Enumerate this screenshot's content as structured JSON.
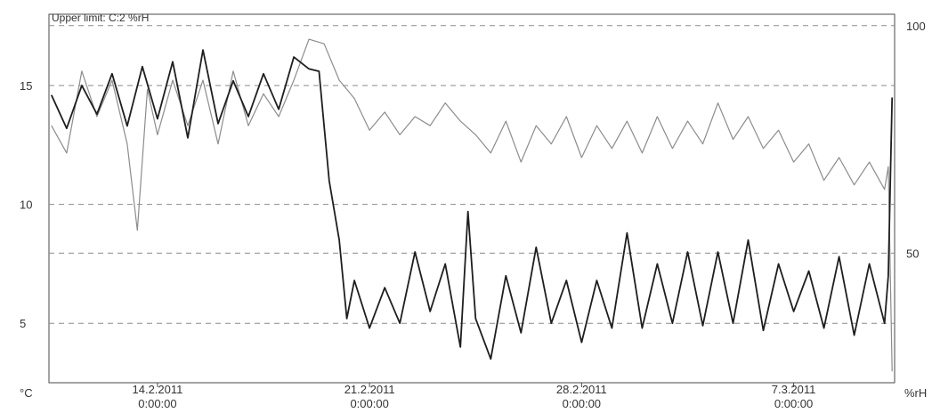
{
  "chart_data": {
    "type": "line",
    "title": "",
    "annotation": "Upper limit: C:2 %rH",
    "x_ticks": [
      {
        "date": "14.2.2011",
        "time": "0:00:00"
      },
      {
        "date": "21.2.2011",
        "time": "0:00:00"
      },
      {
        "date": "28.2.2011",
        "time": "0:00:00"
      },
      {
        "date": "7.3.2011",
        "time": "0:00:00"
      }
    ],
    "x_range": [
      "2011-02-10 10:00",
      "2011-03-10 08:00"
    ],
    "y_left": {
      "unit": "°C",
      "range": [
        2.5,
        18
      ],
      "ticks": [
        "15",
        "10",
        "5"
      ],
      "tick_values": [
        15,
        10,
        5
      ]
    },
    "y_right": {
      "unit": "%rH",
      "range": [
        21.5,
        102.5
      ],
      "ticks": [
        "100",
        "50"
      ],
      "tick_values": [
        100,
        50
      ]
    },
    "grid": "dashed horizontal",
    "series": [
      {
        "axis": "left",
        "style": "dark",
        "points": [
          [
            "2011-02-10 12:00",
            14.6
          ],
          [
            "2011-02-11 00:00",
            13.2
          ],
          [
            "2011-02-11 12:00",
            15.0
          ],
          [
            "2011-02-12 00:00",
            13.8
          ],
          [
            "2011-02-12 12:00",
            15.5
          ],
          [
            "2011-02-13 00:00",
            13.3
          ],
          [
            "2011-02-13 12:00",
            15.8
          ],
          [
            "2011-02-14 00:00",
            13.6
          ],
          [
            "2011-02-14 12:00",
            16.0
          ],
          [
            "2011-02-15 00:00",
            12.8
          ],
          [
            "2011-02-15 12:00",
            16.5
          ],
          [
            "2011-02-16 00:00",
            13.4
          ],
          [
            "2011-02-16 12:00",
            15.2
          ],
          [
            "2011-02-17 00:00",
            13.7
          ],
          [
            "2011-02-17 12:00",
            15.5
          ],
          [
            "2011-02-18 00:00",
            14.0
          ],
          [
            "2011-02-18 12:00",
            16.2
          ],
          [
            "2011-02-19 00:00",
            15.7
          ],
          [
            "2011-02-19 08:00",
            15.6
          ],
          [
            "2011-02-19 16:00",
            11.0
          ],
          [
            "2011-02-20 00:00",
            8.5
          ],
          [
            "2011-02-20 06:00",
            5.2
          ],
          [
            "2011-02-20 12:00",
            6.8
          ],
          [
            "2011-02-21 00:00",
            4.8
          ],
          [
            "2011-02-21 12:00",
            6.5
          ],
          [
            "2011-02-22 00:00",
            5.0
          ],
          [
            "2011-02-22 12:00",
            8.0
          ],
          [
            "2011-02-23 00:00",
            5.5
          ],
          [
            "2011-02-23 12:00",
            7.5
          ],
          [
            "2011-02-24 00:00",
            4.0
          ],
          [
            "2011-02-24 06:00",
            9.7
          ],
          [
            "2011-02-24 12:00",
            5.2
          ],
          [
            "2011-02-25 00:00",
            3.5
          ],
          [
            "2011-02-25 12:00",
            7.0
          ],
          [
            "2011-02-26 00:00",
            4.6
          ],
          [
            "2011-02-26 12:00",
            8.2
          ],
          [
            "2011-02-27 00:00",
            5.0
          ],
          [
            "2011-02-27 12:00",
            6.8
          ],
          [
            "2011-02-28 00:00",
            4.2
          ],
          [
            "2011-02-28 12:00",
            6.8
          ],
          [
            "2011-03-01 00:00",
            4.8
          ],
          [
            "2011-03-01 12:00",
            8.8
          ],
          [
            "2011-03-02 00:00",
            4.8
          ],
          [
            "2011-03-02 12:00",
            7.5
          ],
          [
            "2011-03-03 00:00",
            5.0
          ],
          [
            "2011-03-03 12:00",
            8.0
          ],
          [
            "2011-03-04 00:00",
            4.9
          ],
          [
            "2011-03-04 12:00",
            8.0
          ],
          [
            "2011-03-05 00:00",
            5.0
          ],
          [
            "2011-03-05 12:00",
            8.5
          ],
          [
            "2011-03-06 00:00",
            4.7
          ],
          [
            "2011-03-06 12:00",
            7.5
          ],
          [
            "2011-03-07 00:00",
            5.5
          ],
          [
            "2011-03-07 12:00",
            7.2
          ],
          [
            "2011-03-08 00:00",
            4.8
          ],
          [
            "2011-03-08 12:00",
            7.8
          ],
          [
            "2011-03-09 00:00",
            4.5
          ],
          [
            "2011-03-09 12:00",
            7.5
          ],
          [
            "2011-03-10 00:00",
            5.0
          ],
          [
            "2011-03-10 03:00",
            7.0
          ],
          [
            "2011-03-10 06:00",
            14.5
          ]
        ]
      },
      {
        "axis": "right",
        "style": "light",
        "points": [
          [
            "2011-02-10 12:00",
            78
          ],
          [
            "2011-02-11 00:00",
            72
          ],
          [
            "2011-02-11 12:00",
            90
          ],
          [
            "2011-02-12 00:00",
            80
          ],
          [
            "2011-02-12 12:00",
            88
          ],
          [
            "2011-02-13 00:00",
            74
          ],
          [
            "2011-02-13 08:00",
            55
          ],
          [
            "2011-02-13 16:00",
            86
          ],
          [
            "2011-02-14 00:00",
            76
          ],
          [
            "2011-02-14 12:00",
            88
          ],
          [
            "2011-02-15 00:00",
            78
          ],
          [
            "2011-02-15 12:00",
            88
          ],
          [
            "2011-02-16 00:00",
            74
          ],
          [
            "2011-02-16 12:00",
            90
          ],
          [
            "2011-02-17 00:00",
            78
          ],
          [
            "2011-02-17 12:00",
            85
          ],
          [
            "2011-02-18 00:00",
            80
          ],
          [
            "2011-02-18 12:00",
            88
          ],
          [
            "2011-02-19 00:00",
            97
          ],
          [
            "2011-02-19 12:00",
            96
          ],
          [
            "2011-02-20 00:00",
            88
          ],
          [
            "2011-02-20 12:00",
            84
          ],
          [
            "2011-02-21 00:00",
            77
          ],
          [
            "2011-02-21 12:00",
            81
          ],
          [
            "2011-02-22 00:00",
            76
          ],
          [
            "2011-02-22 12:00",
            80
          ],
          [
            "2011-02-23 00:00",
            78
          ],
          [
            "2011-02-23 12:00",
            83
          ],
          [
            "2011-02-24 00:00",
            79
          ],
          [
            "2011-02-24 12:00",
            76
          ],
          [
            "2011-02-25 00:00",
            72
          ],
          [
            "2011-02-25 12:00",
            79
          ],
          [
            "2011-02-26 00:00",
            70
          ],
          [
            "2011-02-26 12:00",
            78
          ],
          [
            "2011-02-27 00:00",
            74
          ],
          [
            "2011-02-27 12:00",
            80
          ],
          [
            "2011-02-28 00:00",
            71
          ],
          [
            "2011-02-28 12:00",
            78
          ],
          [
            "2011-03-01 00:00",
            73
          ],
          [
            "2011-03-01 12:00",
            79
          ],
          [
            "2011-03-02 00:00",
            72
          ],
          [
            "2011-03-02 12:00",
            80
          ],
          [
            "2011-03-03 00:00",
            73
          ],
          [
            "2011-03-03 12:00",
            79
          ],
          [
            "2011-03-04 00:00",
            74
          ],
          [
            "2011-03-04 12:00",
            83
          ],
          [
            "2011-03-05 00:00",
            75
          ],
          [
            "2011-03-05 12:00",
            80
          ],
          [
            "2011-03-06 00:00",
            73
          ],
          [
            "2011-03-06 12:00",
            77
          ],
          [
            "2011-03-07 00:00",
            70
          ],
          [
            "2011-03-07 12:00",
            74
          ],
          [
            "2011-03-08 00:00",
            66
          ],
          [
            "2011-03-08 12:00",
            71
          ],
          [
            "2011-03-09 00:00",
            65
          ],
          [
            "2011-03-09 12:00",
            70
          ],
          [
            "2011-03-10 00:00",
            64
          ],
          [
            "2011-03-10 03:00",
            69
          ],
          [
            "2011-03-10 06:00",
            24
          ]
        ]
      }
    ]
  }
}
